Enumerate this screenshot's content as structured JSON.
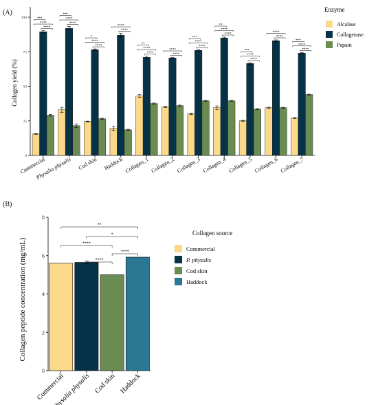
{
  "chart_data": [
    {
      "type": "bar",
      "panel_label": "(A)",
      "ylabel": "Collagen yield (%)",
      "ylim": [
        0,
        105
      ],
      "yticks": [
        0,
        25,
        50,
        75,
        100
      ],
      "legend_title": "Enzyme",
      "legend_position": "right",
      "categories": [
        "Commercial",
        "Physalia physalis",
        "Cod skin",
        "Haddock",
        "Collagen_1",
        "Collagen_2",
        "Collagen_3",
        "Collagen_4",
        "Collagen_5",
        "Collagen_6",
        "Collagen_7"
      ],
      "italic_categories": [
        "Physalia physalis"
      ],
      "series": [
        {
          "name": "Alcalase",
          "color": "#fbd98a",
          "values": [
            15.5,
            33,
            24.5,
            19.5,
            43,
            35,
            30,
            34.5,
            25,
            34.5,
            27
          ],
          "errors": [
            0.3,
            1.8,
            0.3,
            1.5,
            1.0,
            0.4,
            0.5,
            1.3,
            0.4,
            0.4,
            0.3
          ]
        },
        {
          "name": "Collagenase",
          "color": "#063248",
          "values": [
            89.5,
            92,
            76.5,
            87,
            71,
            70.5,
            76,
            85,
            66.5,
            83,
            74
          ],
          "errors": [
            0.8,
            1.3,
            0.6,
            1.3,
            0.8,
            0.4,
            0.6,
            0.6,
            0.6,
            0.6,
            0.5
          ]
        },
        {
          "name": "Papain",
          "color": "#6a8c52",
          "values": [
            29,
            21.5,
            26.5,
            18.5,
            37.5,
            36,
            39.5,
            39.5,
            33.5,
            34.5,
            44
          ],
          "errors": [
            0.6,
            1.3,
            0.4,
            0.4,
            0.4,
            0.4,
            0.3,
            0.3,
            0.3,
            0.3,
            0.3
          ]
        }
      ],
      "significance": [
        {
          "category": 0,
          "labels": [
            "***",
            "****",
            "****"
          ]
        },
        {
          "category": 1,
          "labels": [
            "***",
            "****",
            "****"
          ]
        },
        {
          "category": 2,
          "labels": [
            "*",
            "****",
            "****"
          ]
        },
        {
          "category": 3,
          "labels": [
            "****",
            "****"
          ]
        },
        {
          "category": 4,
          "labels": [
            "**",
            "****",
            "****"
          ]
        },
        {
          "category": 5,
          "labels": [
            "****",
            "****"
          ]
        },
        {
          "category": 6,
          "labels": [
            "***",
            "****",
            "****"
          ]
        },
        {
          "category": 7,
          "labels": [
            "**",
            "****",
            "****"
          ]
        },
        {
          "category": 8,
          "labels": [
            "***",
            "****",
            "****"
          ]
        },
        {
          "category": 9,
          "labels": [
            "****",
            "****"
          ]
        },
        {
          "category": 10,
          "labels": [
            "***",
            "****",
            "****"
          ]
        }
      ]
    },
    {
      "type": "bar",
      "panel_label": "(B)",
      "ylabel": "Collagen peptide concentration (mg/mL)",
      "ylim": [
        0,
        8
      ],
      "yticks": [
        0,
        2,
        4,
        6,
        8
      ],
      "legend_title": "Collagen source",
      "legend_position": "right",
      "categories": [
        "Commercial",
        "Physalia physalis",
        "Cod skin",
        "Haddock"
      ],
      "italic_categories": [
        "Physalia physalis"
      ],
      "legend_entries": [
        "Commercial",
        "P. physalis",
        "Cod skin",
        "Haddock"
      ],
      "italic_legend_entries": [
        "P. physalis"
      ],
      "colors": [
        "#fbd98a",
        "#063248",
        "#6a8c52",
        "#2b7895"
      ],
      "values": [
        5.6,
        5.65,
        5.0,
        5.92
      ],
      "errors": [
        0,
        0.06,
        0,
        0
      ],
      "significance": [
        {
          "from": 0,
          "to": 3,
          "label": "**"
        },
        {
          "from": 1,
          "to": 3,
          "label": "*"
        },
        {
          "from": 0,
          "to": 2,
          "label": "****"
        },
        {
          "from": 2,
          "to": 3,
          "label": "****"
        },
        {
          "from": 1,
          "to": 2,
          "label": "****"
        }
      ]
    }
  ]
}
